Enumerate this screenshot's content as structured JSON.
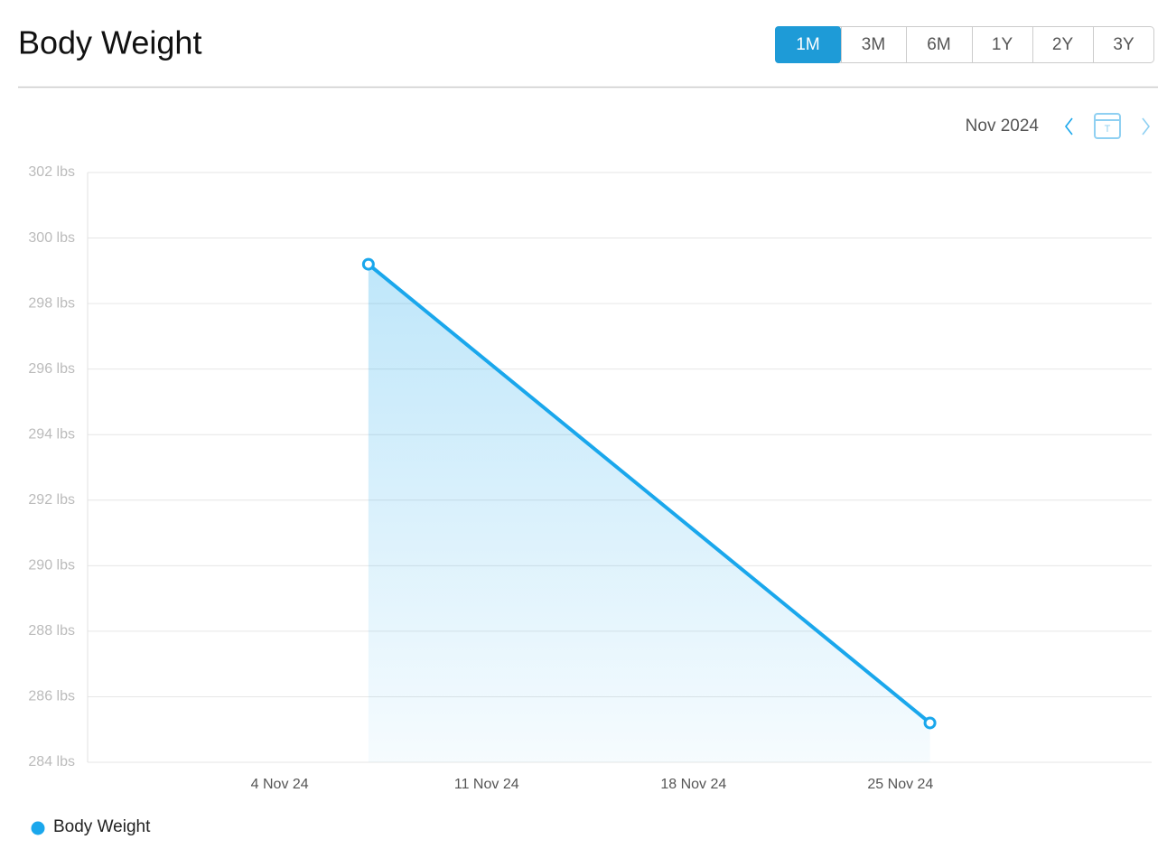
{
  "header": {
    "title": "Body Weight"
  },
  "ranges": {
    "options": [
      "1M",
      "3M",
      "6M",
      "1Y",
      "2Y",
      "3Y"
    ],
    "selected": 0
  },
  "nav": {
    "period": "Nov 2024",
    "today_label": "T"
  },
  "chart_data": {
    "type": "line",
    "x": [
      "2024-11-07",
      "2024-11-26"
    ],
    "series": [
      {
        "name": "Body Weight",
        "color": "#1aa7ec",
        "values": [
          299.2,
          285.2
        ]
      }
    ],
    "xlim": [
      "2024-10-28T12:00",
      "2024-12-03T12:00"
    ],
    "xticks": [
      {
        "value": "2024-11-04",
        "label": "4 Nov 24"
      },
      {
        "value": "2024-11-11",
        "label": "11 Nov 24"
      },
      {
        "value": "2024-11-18",
        "label": "18 Nov 24"
      },
      {
        "value": "2024-11-25",
        "label": "25 Nov 24"
      }
    ],
    "ylim": [
      284,
      302
    ],
    "yticks": [
      {
        "value": 284,
        "label": "284 lbs"
      },
      {
        "value": 286,
        "label": "286 lbs"
      },
      {
        "value": 288,
        "label": "288 lbs"
      },
      {
        "value": 290,
        "label": "290 lbs"
      },
      {
        "value": 292,
        "label": "292 lbs"
      },
      {
        "value": 294,
        "label": "294 lbs"
      },
      {
        "value": 296,
        "label": "296 lbs"
      },
      {
        "value": 298,
        "label": "298 lbs"
      },
      {
        "value": 300,
        "label": "300 lbs"
      },
      {
        "value": 302,
        "label": "302 lbs"
      }
    ],
    "grid": true,
    "legend": "bottom-left"
  }
}
